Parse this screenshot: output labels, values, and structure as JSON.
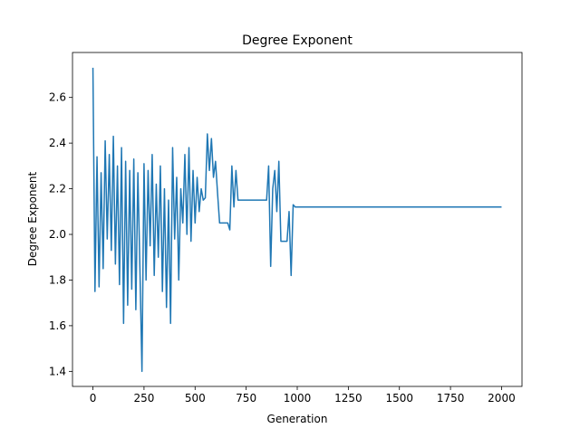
{
  "chart_data": {
    "type": "line",
    "title": "Degree Exponent",
    "xlabel": "Generation",
    "ylabel": "Degree Exponent",
    "x": [
      0,
      10,
      20,
      30,
      40,
      50,
      60,
      70,
      80,
      90,
      100,
      110,
      120,
      130,
      140,
      150,
      160,
      170,
      180,
      190,
      200,
      210,
      220,
      230,
      240,
      250,
      260,
      270,
      280,
      290,
      300,
      310,
      320,
      330,
      340,
      350,
      360,
      370,
      380,
      390,
      400,
      410,
      420,
      430,
      440,
      450,
      460,
      470,
      480,
      490,
      500,
      510,
      520,
      530,
      540,
      550,
      560,
      570,
      580,
      590,
      600,
      610,
      620,
      630,
      640,
      650,
      660,
      670,
      680,
      690,
      700,
      710,
      720,
      730,
      740,
      750,
      760,
      770,
      780,
      790,
      800,
      810,
      820,
      830,
      840,
      850,
      860,
      870,
      880,
      890,
      900,
      910,
      920,
      930,
      940,
      950,
      960,
      970,
      980,
      990,
      2000
    ],
    "series": [
      {
        "name": "Degree Exponent",
        "color": "#1f77b4",
        "values": [
          2.73,
          1.75,
          2.34,
          1.77,
          2.27,
          1.85,
          2.41,
          1.98,
          2.35,
          1.93,
          2.43,
          1.87,
          2.3,
          1.78,
          2.38,
          1.61,
          2.32,
          1.69,
          2.28,
          1.76,
          2.33,
          1.67,
          2.27,
          1.85,
          1.4,
          2.31,
          1.8,
          2.28,
          1.95,
          2.35,
          1.82,
          2.22,
          1.9,
          2.3,
          1.75,
          2.2,
          1.68,
          2.15,
          1.61,
          2.38,
          1.98,
          2.25,
          1.8,
          2.2,
          2.05,
          2.35,
          2.0,
          2.38,
          1.97,
          2.28,
          2.05,
          2.25,
          2.1,
          2.2,
          2.15,
          2.16,
          2.44,
          2.28,
          2.42,
          2.25,
          2.32,
          2.18,
          2.05,
          2.05,
          2.05,
          2.05,
          2.05,
          2.02,
          2.3,
          2.12,
          2.28,
          2.15,
          2.15,
          2.15,
          2.15,
          2.15,
          2.15,
          2.15,
          2.15,
          2.15,
          2.15,
          2.15,
          2.15,
          2.15,
          2.15,
          2.15,
          2.3,
          1.86,
          2.2,
          2.28,
          2.1,
          2.32,
          1.97,
          1.97,
          1.97,
          1.97,
          2.1,
          1.82,
          2.13,
          2.12,
          2.12
        ]
      }
    ],
    "xlim": [
      -100,
      2100
    ],
    "ylim": [
      1.334,
      2.797
    ],
    "xticks": [
      0,
      250,
      500,
      750,
      1000,
      1250,
      1500,
      1750,
      2000
    ],
    "yticks": [
      1.4,
      1.6,
      1.8,
      {
        "value": 2,
        "label": "2.0"
      },
      2.2,
      2.4,
      2.6
    ]
  }
}
